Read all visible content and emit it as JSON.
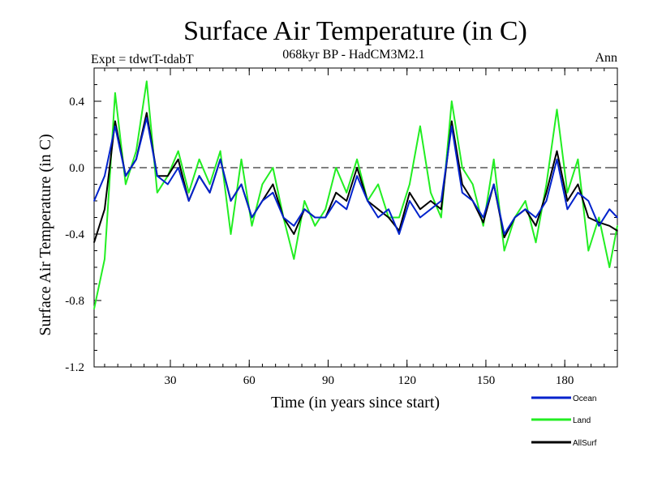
{
  "chart_data": {
    "type": "line",
    "title": "Surface Air Temperature (in C)",
    "subtitle": "068kyr BP - HadCM3M2.1",
    "left_label": "Expt = tdwtT-tdabT",
    "right_label": "Ann",
    "xlabel": "Time (in years since start)",
    "ylabel": "Surface Air Temperature (in C)",
    "xlim": [
      1,
      200
    ],
    "ylim": [
      -1.2,
      0.6
    ],
    "xticks": [
      30,
      60,
      90,
      120,
      150,
      180
    ],
    "yticks": [
      -1.2,
      -0.8,
      -0.4,
      0.0,
      0.4
    ],
    "ytick_labels": [
      "-1.2",
      "-0.8",
      "-0.4",
      "0.0",
      "0.4"
    ],
    "xtick_labels": [
      "30",
      "60",
      "90",
      "120",
      "150",
      "180"
    ],
    "reference_line": 0.0,
    "legend": [
      "Ocean",
      "Land",
      "AllSurf"
    ],
    "x": [
      1,
      5,
      9,
      13,
      17,
      21,
      25,
      29,
      33,
      37,
      41,
      45,
      49,
      53,
      57,
      61,
      65,
      69,
      73,
      77,
      81,
      85,
      89,
      93,
      97,
      101,
      105,
      109,
      113,
      117,
      121,
      125,
      129,
      133,
      137,
      141,
      145,
      149,
      153,
      157,
      161,
      165,
      169,
      173,
      177,
      181,
      185,
      189,
      193,
      197,
      200
    ],
    "series": [
      {
        "name": "Ocean",
        "color": "#0022cc",
        "values": [
          -0.2,
          -0.05,
          0.25,
          -0.05,
          0.05,
          0.3,
          -0.05,
          -0.1,
          0.0,
          -0.2,
          -0.05,
          -0.15,
          0.05,
          -0.2,
          -0.1,
          -0.3,
          -0.2,
          -0.15,
          -0.3,
          -0.35,
          -0.25,
          -0.3,
          -0.3,
          -0.2,
          -0.25,
          -0.05,
          -0.2,
          -0.3,
          -0.25,
          -0.4,
          -0.2,
          -0.3,
          -0.25,
          -0.2,
          0.25,
          -0.15,
          -0.2,
          -0.3,
          -0.1,
          -0.4,
          -0.3,
          -0.25,
          -0.3,
          -0.2,
          0.05,
          -0.25,
          -0.15,
          -0.2,
          -0.35,
          -0.25,
          -0.3
        ]
      },
      {
        "name": "Land",
        "color": "#22ee22",
        "values": [
          -0.85,
          -0.55,
          0.45,
          -0.1,
          0.1,
          0.52,
          -0.15,
          -0.05,
          0.1,
          -0.15,
          0.05,
          -0.1,
          0.1,
          -0.4,
          0.05,
          -0.35,
          -0.1,
          0.0,
          -0.3,
          -0.55,
          -0.2,
          -0.35,
          -0.25,
          0.0,
          -0.15,
          0.05,
          -0.2,
          -0.1,
          -0.3,
          -0.3,
          -0.1,
          0.25,
          -0.15,
          -0.3,
          0.4,
          0.0,
          -0.1,
          -0.35,
          0.05,
          -0.5,
          -0.3,
          -0.2,
          -0.45,
          -0.1,
          0.35,
          -0.15,
          0.05,
          -0.5,
          -0.3,
          -0.6,
          -0.35
        ]
      },
      {
        "name": "AllSurf",
        "color": "#000000",
        "values": [
          -0.45,
          -0.25,
          0.28,
          -0.05,
          0.05,
          0.33,
          -0.05,
          -0.05,
          0.05,
          -0.2,
          -0.05,
          -0.15,
          0.05,
          -0.2,
          -0.1,
          -0.3,
          -0.2,
          -0.1,
          -0.3,
          -0.4,
          -0.25,
          -0.3,
          -0.3,
          -0.15,
          -0.2,
          0.0,
          -0.2,
          -0.25,
          -0.3,
          -0.38,
          -0.15,
          -0.25,
          -0.2,
          -0.25,
          0.28,
          -0.1,
          -0.2,
          -0.33,
          -0.1,
          -0.42,
          -0.3,
          -0.25,
          -0.35,
          -0.15,
          0.1,
          -0.2,
          -0.1,
          -0.3,
          -0.33,
          -0.35,
          -0.38
        ]
      }
    ]
  }
}
